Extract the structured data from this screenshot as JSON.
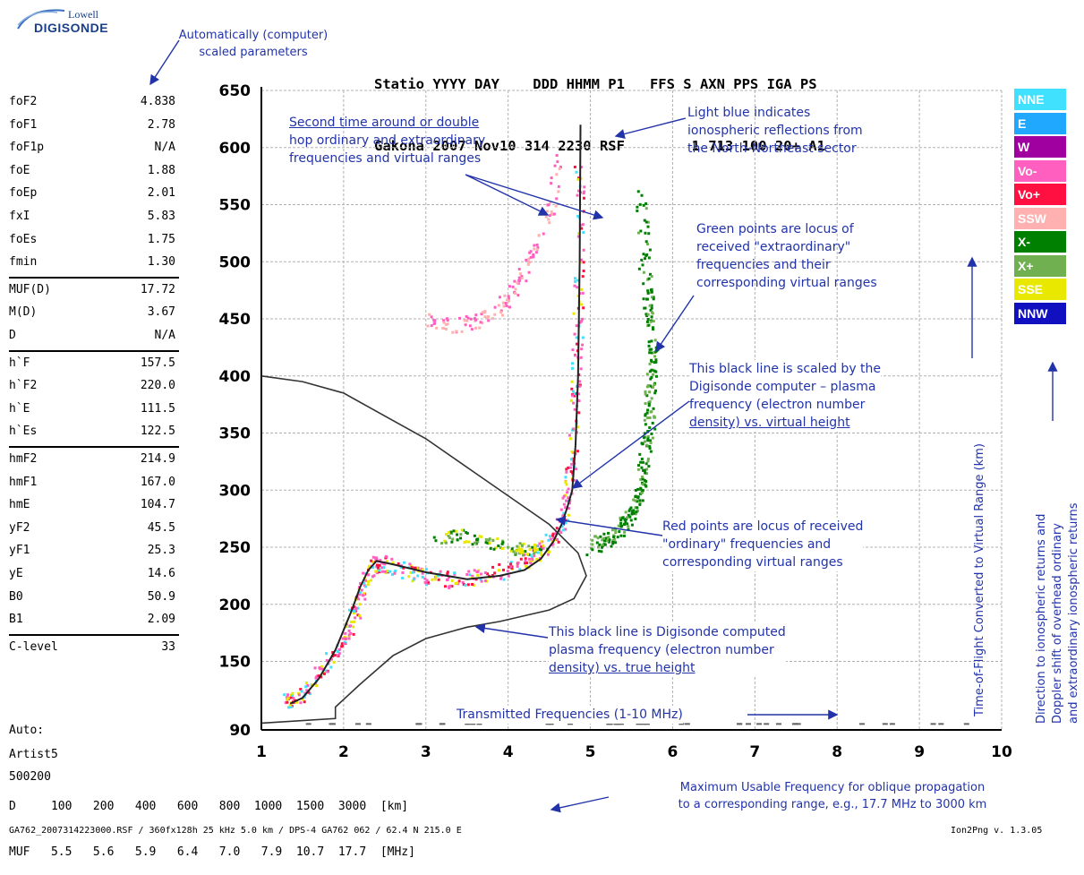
{
  "logo": {
    "top": "Lowell",
    "bottom": "DIGISONDE"
  },
  "scaled_note": [
    "Automatically (computer)",
    "scaled parameters"
  ],
  "station": {
    "header": "Statio YYYY DAY    DDD HHMM P1   FFS S AXN PPS IGA PS",
    "values": "Gakona 2007 Nov10 314 2230 RSF        1 713 100 20+ A1"
  },
  "params_groups": [
    [
      [
        "foF2",
        "4.838"
      ],
      [
        "foF1",
        "2.78"
      ],
      [
        "foF1p",
        "N/A"
      ],
      [
        "foE",
        "1.88"
      ],
      [
        "foEp",
        "2.01"
      ],
      [
        "fxI",
        "5.83"
      ],
      [
        "foEs",
        "1.75"
      ],
      [
        "fmin",
        "1.30"
      ]
    ],
    [
      [
        "MUF(D)",
        "17.72"
      ],
      [
        "M(D)",
        "3.67"
      ],
      [
        "D",
        "N/A"
      ]
    ],
    [
      [
        "h`F",
        "157.5"
      ],
      [
        "h`F2",
        "220.0"
      ],
      [
        "h`E",
        "111.5"
      ],
      [
        "h`Es",
        "122.5"
      ]
    ],
    [
      [
        "hmF2",
        "214.9"
      ],
      [
        "hmF1",
        "167.0"
      ],
      [
        "hmE",
        "104.7"
      ],
      [
        "yF2",
        "45.5"
      ],
      [
        "yF1",
        "25.3"
      ],
      [
        "yE",
        "14.6"
      ],
      [
        "B0",
        "50.9"
      ],
      [
        "B1",
        "2.09"
      ]
    ],
    [
      [
        "C-level",
        "33"
      ]
    ]
  ],
  "auto": {
    "line1": "Auto:",
    "line2": "Artist5",
    "line3": "500200"
  },
  "bottom_table": {
    "d_row": "D     100   200   400   600   800  1000  1500  3000  [km]",
    "muf_row": "MUF   5.5   5.6   5.9   6.4   7.0   7.9  10.7  17.7  [MHz]"
  },
  "muf_note": [
    "Maximum Usable Frequency for oblique propagation",
    "to a corresponding range, e.g., 17.7 MHz to 3000 km"
  ],
  "footer": "GA762_2007314223000.RSF / 360fx128h 25 kHz 5.0 km / DPS-4 GA762 062 / 62.4 N 215.0 E",
  "footer_right": "Ion2Png v. 1.3.05",
  "legend": [
    {
      "label": "NNE",
      "color": "#40e0ff"
    },
    {
      "label": "E",
      "color": "#20a8ff"
    },
    {
      "label": "W",
      "color": "#a000a0"
    },
    {
      "label": "Vo-",
      "color": "#ff60c0"
    },
    {
      "label": "Vo+",
      "color": "#ff1040"
    },
    {
      "label": "SSW",
      "color": "#ffb0b0"
    },
    {
      "label": "X-",
      "color": "#008000"
    },
    {
      "label": "X+",
      "color": "#70b050"
    },
    {
      "label": "SSE",
      "color": "#e8e800"
    },
    {
      "label": "NNW",
      "color": "#1010c0"
    }
  ],
  "right_rot_text": [
    "Direction to ionospheric returns and",
    "Doppler shift of overhead ordinary",
    "and extraordinary ionospheric returns"
  ],
  "axis_rot_text": "Time-of-Flight Converted to Virtual Range (km)",
  "annotations": {
    "second_time": [
      "Second time around or double",
      "hop ordinary and extraordinary",
      "frequencies and virtual ranges"
    ],
    "light_blue": [
      "Light blue indicates",
      "ionospheric reflections from",
      "the  North-Northeast sector"
    ],
    "green_points": [
      "Green points are locus of",
      "received \"extraordinary\"",
      "frequencies and their",
      "corresponding virtual ranges"
    ],
    "black_line_virtual": [
      "This black line is scaled by the",
      "Digisonde computer – plasma",
      "frequency (electron number",
      "density) vs. virtual height"
    ],
    "red_points": [
      "Red points are locus of received",
      "\"ordinary\" frequencies and",
      "corresponding virtual ranges"
    ],
    "black_line_true": [
      "This black line is Digisonde computed",
      "plasma frequency (electron number",
      "density) vs. true height"
    ],
    "transmitted": "Transmitted Frequencies (1-10 MHz)"
  },
  "chart_data": {
    "type": "scatter",
    "title": "",
    "xlabel": "",
    "ylabel": "Time-of-Flight Converted to Virtual Range (km)",
    "xlim": [
      1,
      10
    ],
    "ylim": [
      90,
      650
    ],
    "x_ticks": [
      1,
      2,
      3,
      4,
      5,
      6,
      7,
      8,
      9,
      10
    ],
    "y_ticks": [
      90,
      150,
      200,
      250,
      300,
      350,
      400,
      450,
      500,
      550,
      600,
      650
    ],
    "grid": true,
    "series": [
      {
        "name": "Vo- / Vo+",
        "type": "scatter",
        "x": [
          1.3,
          1.4,
          1.6,
          1.8,
          2.0,
          2.1,
          2.2,
          2.3,
          2.4,
          2.5,
          2.8,
          3.0,
          3.3,
          3.6,
          3.9,
          4.2,
          4.4,
          4.6,
          4.7,
          4.75,
          4.8,
          4.82,
          4.84,
          4.85,
          4.85
        ],
        "y": [
          115,
          120,
          130,
          150,
          170,
          190,
          210,
          230,
          238,
          235,
          230,
          225,
          222,
          225,
          230,
          238,
          248,
          265,
          290,
          320,
          360,
          400,
          450,
          520,
          600
        ]
      },
      {
        "name": "X- / X+",
        "type": "scatter",
        "x": [
          5.0,
          5.2,
          5.4,
          5.5,
          5.6,
          5.65,
          5.7,
          5.72,
          5.75,
          5.7,
          5.65,
          5.6
        ],
        "y": [
          250,
          258,
          270,
          285,
          300,
          330,
          360,
          390,
          420,
          460,
          500,
          560
        ]
      },
      {
        "name": "SSW",
        "type": "scatter",
        "x": [
          3.0,
          3.3,
          3.6,
          3.9,
          4.1,
          4.3,
          4.5,
          4.6
        ],
        "y": [
          450,
          445,
          448,
          460,
          480,
          510,
          545,
          600
        ]
      },
      {
        "name": "SSE",
        "type": "scatter",
        "x": [
          3.1,
          3.4,
          3.7,
          4.0,
          4.2,
          4.5
        ],
        "y": [
          258,
          262,
          255,
          252,
          248,
          250
        ]
      },
      {
        "name": "virtual height profile",
        "type": "line",
        "x": [
          1.35,
          1.5,
          1.7,
          1.9,
          2.1,
          2.2,
          2.3,
          2.4,
          2.6,
          3.0,
          3.5,
          3.9,
          4.2,
          4.4,
          4.55,
          4.65,
          4.72,
          4.78,
          4.82,
          4.85,
          4.87,
          4.88
        ],
        "y": [
          113,
          118,
          135,
          160,
          195,
          215,
          230,
          238,
          235,
          228,
          222,
          225,
          230,
          240,
          255,
          270,
          285,
          300,
          340,
          400,
          500,
          620
        ]
      },
      {
        "name": "true height profile",
        "type": "line",
        "x": [
          1.0,
          1.9,
          1.9,
          2.2,
          2.6,
          3.0,
          3.5,
          3.9,
          4.2,
          4.5,
          4.8,
          4.95,
          4.85,
          4.5,
          4.1,
          3.6,
          3.0,
          2.5,
          2.0,
          1.5,
          1.0
        ],
        "y": [
          96,
          100,
          110,
          130,
          155,
          170,
          180,
          185,
          190,
          195,
          205,
          225,
          245,
          270,
          290,
          315,
          345,
          365,
          385,
          395,
          400
        ]
      }
    ]
  }
}
